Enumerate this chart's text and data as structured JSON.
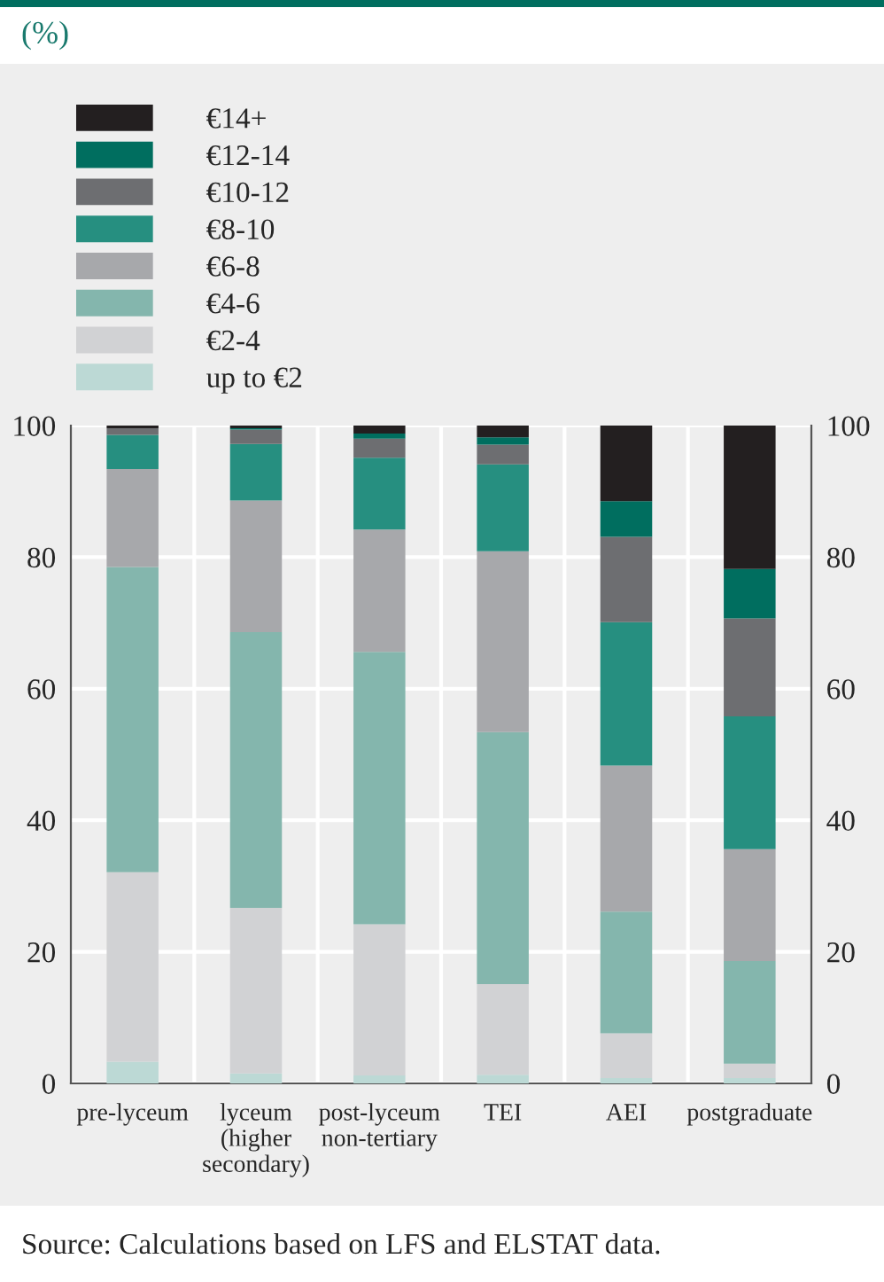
{
  "chart_data": {
    "type": "bar",
    "stacked": true,
    "title": "(%)",
    "categories": [
      "pre-lyceum",
      "lyceum\n(higher\nsecondary)",
      "post-lyceum\nnon-tertiary",
      "TEI",
      "AEI",
      "postgraduate"
    ],
    "series": [
      {
        "name": "up to €2",
        "color": "#bcd9d5",
        "values": [
          3.3,
          1.5,
          1.2,
          1.3,
          0.8,
          0.8
        ]
      },
      {
        "name": "€2-4",
        "color": "#d1d2d4",
        "values": [
          28.8,
          25.2,
          23.0,
          13.8,
          6.8,
          2.2
        ]
      },
      {
        "name": "€4-6",
        "color": "#84b6ad",
        "values": [
          46.4,
          41.9,
          41.4,
          38.3,
          18.5,
          15.6
        ]
      },
      {
        "name": "€6-8",
        "color": "#a7a8ab",
        "values": [
          14.9,
          20.0,
          18.6,
          27.5,
          22.2,
          17.0
        ]
      },
      {
        "name": "€8-10",
        "color": "#268f80",
        "values": [
          5.2,
          8.6,
          10.9,
          13.2,
          21.8,
          20.2
        ]
      },
      {
        "name": "€10-12",
        "color": "#6d6e71",
        "values": [
          1.0,
          2.2,
          2.9,
          3.0,
          13.0,
          14.9
        ]
      },
      {
        "name": "€12-14",
        "color": "#006e5f",
        "values": [
          0,
          0.2,
          0.8,
          1.1,
          5.4,
          7.5
        ]
      },
      {
        "name": "€14+",
        "color": "#231f20",
        "values": [
          0.4,
          0.4,
          1.2,
          1.8,
          11.5,
          21.8
        ]
      }
    ],
    "ylim": [
      0,
      100
    ],
    "yticks": [
      0,
      20,
      40,
      60,
      80,
      100
    ],
    "y2lim": [
      0,
      100
    ],
    "y2ticks": [
      0,
      20,
      40,
      60,
      80,
      100
    ],
    "grid": "y",
    "legend": "top left",
    "annotations": [
      "Source: Calculations based on LFS and ELSTAT data."
    ]
  }
}
